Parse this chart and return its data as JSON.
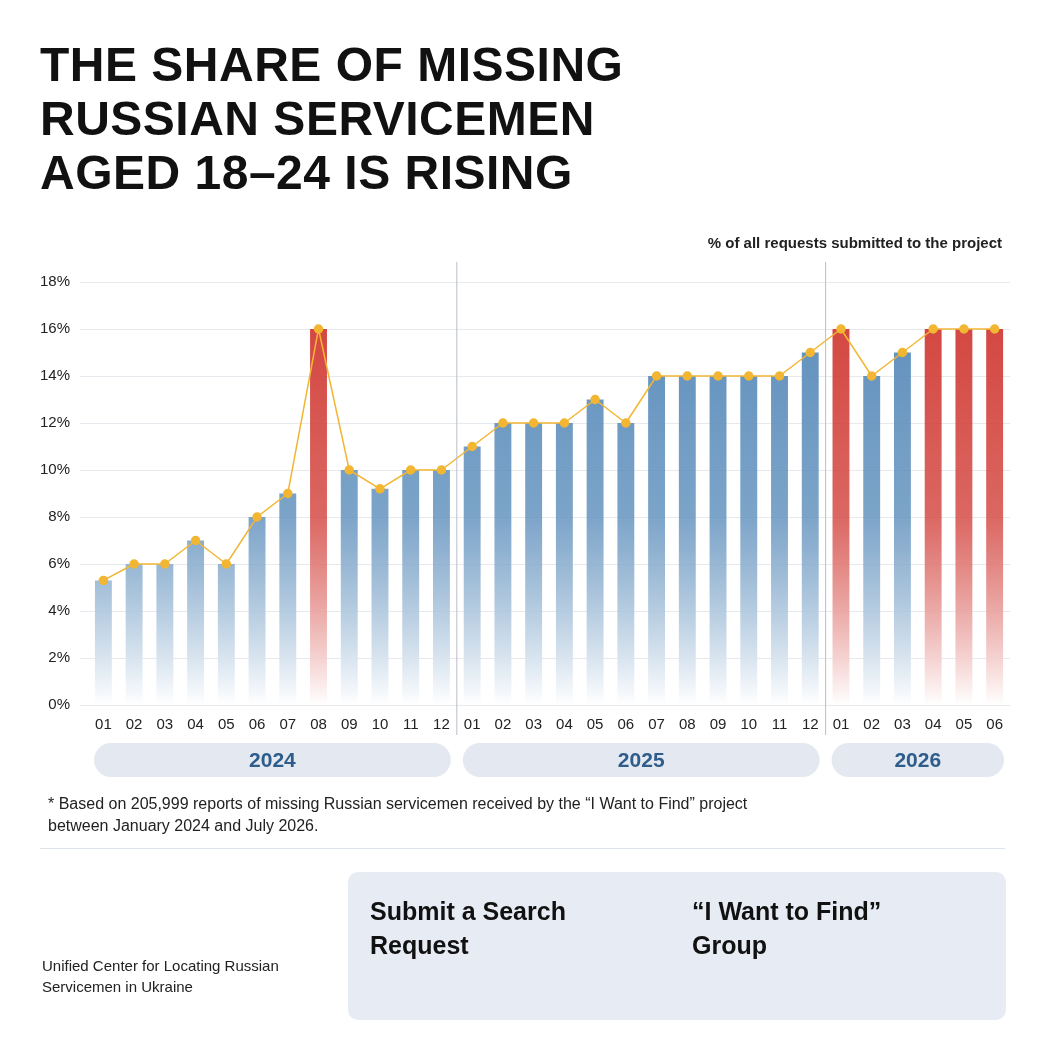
{
  "chart_data": {
    "type": "bar",
    "title": "THE SHARE OF MISSING RUSSIAN SERVICEMEN AGED 18–24 IS RISING",
    "ylabel": "% of all requests submitted to the project",
    "categories": [
      "01",
      "02",
      "03",
      "04",
      "05",
      "06",
      "07",
      "08",
      "09",
      "10",
      "11",
      "12",
      "01",
      "02",
      "03",
      "04",
      "05",
      "06",
      "07",
      "08",
      "09",
      "10",
      "11",
      "12",
      "01",
      "02",
      "03",
      "04",
      "05",
      "06"
    ],
    "series": [
      {
        "colors": [
          "#5b8dbb",
          "#5b8dbb",
          "#5b8dbb",
          "#5b8dbb",
          "#5b8dbb",
          "#5b8dbb",
          "#5b8dbb",
          "#d2403a",
          "#5b8dbb",
          "#5b8dbb",
          "#5b8dbb",
          "#5b8dbb",
          "#5b8dbb",
          "#5b8dbb",
          "#5b8dbb",
          "#5b8dbb",
          "#5b8dbb",
          "#5b8dbb",
          "#5b8dbb",
          "#5b8dbb",
          "#5b8dbb",
          "#5b8dbb",
          "#5b8dbb",
          "#5b8dbb",
          "#d2403a",
          "#5b8dbb",
          "#5b8dbb",
          "#d2403a",
          "#d2403a",
          "#d2403a"
        ],
        "values": [
          5.3,
          6,
          6,
          7,
          6,
          8,
          9,
          16,
          10,
          9.2,
          10,
          10,
          11,
          12,
          12,
          12,
          13,
          12,
          14,
          14,
          14,
          14,
          14,
          15,
          16,
          14,
          15,
          16,
          16,
          16
        ]
      },
      {
        "type": "line",
        "color": "#f2b633",
        "values": [
          5.3,
          6,
          6,
          7,
          6,
          8,
          9,
          16,
          10,
          9.2,
          10,
          10,
          11,
          12,
          12,
          12,
          13,
          12,
          14,
          14,
          14,
          14,
          14,
          15,
          16,
          14,
          15,
          16,
          16,
          16
        ]
      }
    ],
    "ylim": [
      0,
      18
    ],
    "yticks": [
      {
        "value": 0,
        "label": "0%"
      },
      {
        "value": 2,
        "label": "2%"
      },
      {
        "value": 4,
        "label": "4%"
      },
      {
        "value": 6,
        "label": "6%"
      },
      {
        "value": 8,
        "label": "8%"
      },
      {
        "value": 10,
        "label": "10%"
      },
      {
        "value": 12,
        "label": "12%"
      },
      {
        "value": 14,
        "label": "14%"
      },
      {
        "value": 16,
        "label": "16%"
      },
      {
        "value": 18,
        "label": "18%"
      }
    ],
    "grid": "y",
    "legend": false,
    "marker": "circle",
    "line_style": "solid",
    "annotations": [
      "2024",
      "2025",
      "2026",
      "* Based on 205,999 reports of missing Russian servicemen received by the “I Want to Find” project between January 2024 and July 2026.",
      "Unified Center for Locating Russian Servicemen in Ukraine",
      "Submit a Search Request",
      "“I Want to Find” Group"
    ]
  }
}
